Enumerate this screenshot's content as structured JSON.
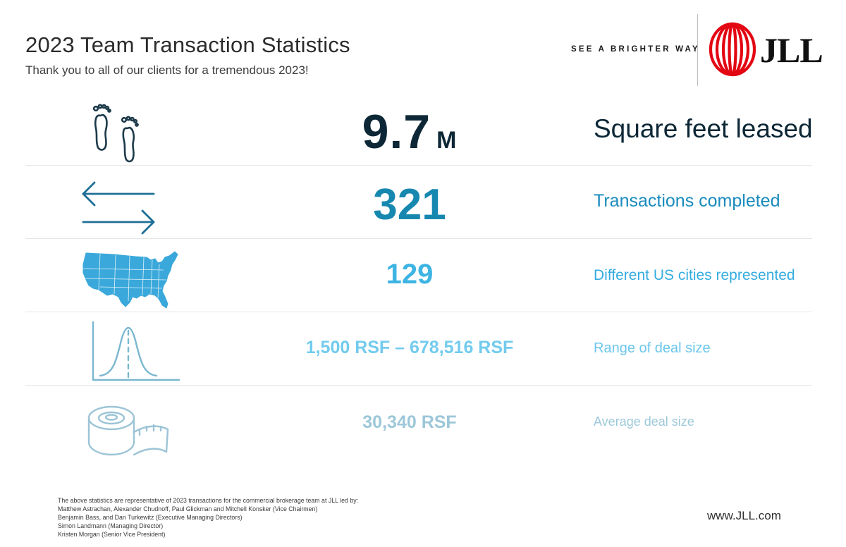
{
  "header": {
    "title": "2023 Team Transaction Statistics",
    "subtitle": "Thank you to all of our clients for a tremendous 2023!",
    "tagline": "SEE A BRIGHTER WAY",
    "logo_text": "JLL",
    "logo_color": "#e30613"
  },
  "stats": [
    {
      "icon": "footprints-icon",
      "value": "9.7",
      "unit": "M",
      "label": "Square feet leased",
      "color": "#0d2736"
    },
    {
      "icon": "transfer-arrows-icon",
      "value": "321",
      "label": "Transactions completed",
      "color": "#1688b0"
    },
    {
      "icon": "us-map-icon",
      "value": "129",
      "label": "Different US cities represented",
      "color": "#3db4e3"
    },
    {
      "icon": "bell-curve-icon",
      "value": "1,500 RSF – 678,516 RSF",
      "label": "Range of deal size",
      "color": "#72cbee"
    },
    {
      "icon": "measuring-tape-icon",
      "value": "30,340 RSF",
      "label": "Average deal size",
      "color": "#9dc7d9"
    }
  ],
  "footer": {
    "lines": [
      "The above statistics are representative of 2023 transactions for the commercial brokerage team at JLL led by:",
      "Matthew Astrachan, Alexander Chudnoff, Paul Glickman and Mitchell Konsker (Vice Chairmen)",
      "Benjamin Bass, and Dan Turkewitz (Executive Managing Directors)",
      "Simon Landmann (Managing Director)",
      "Kristen Morgan (Senior Vice President)"
    ],
    "website": "www.JLL.com"
  }
}
